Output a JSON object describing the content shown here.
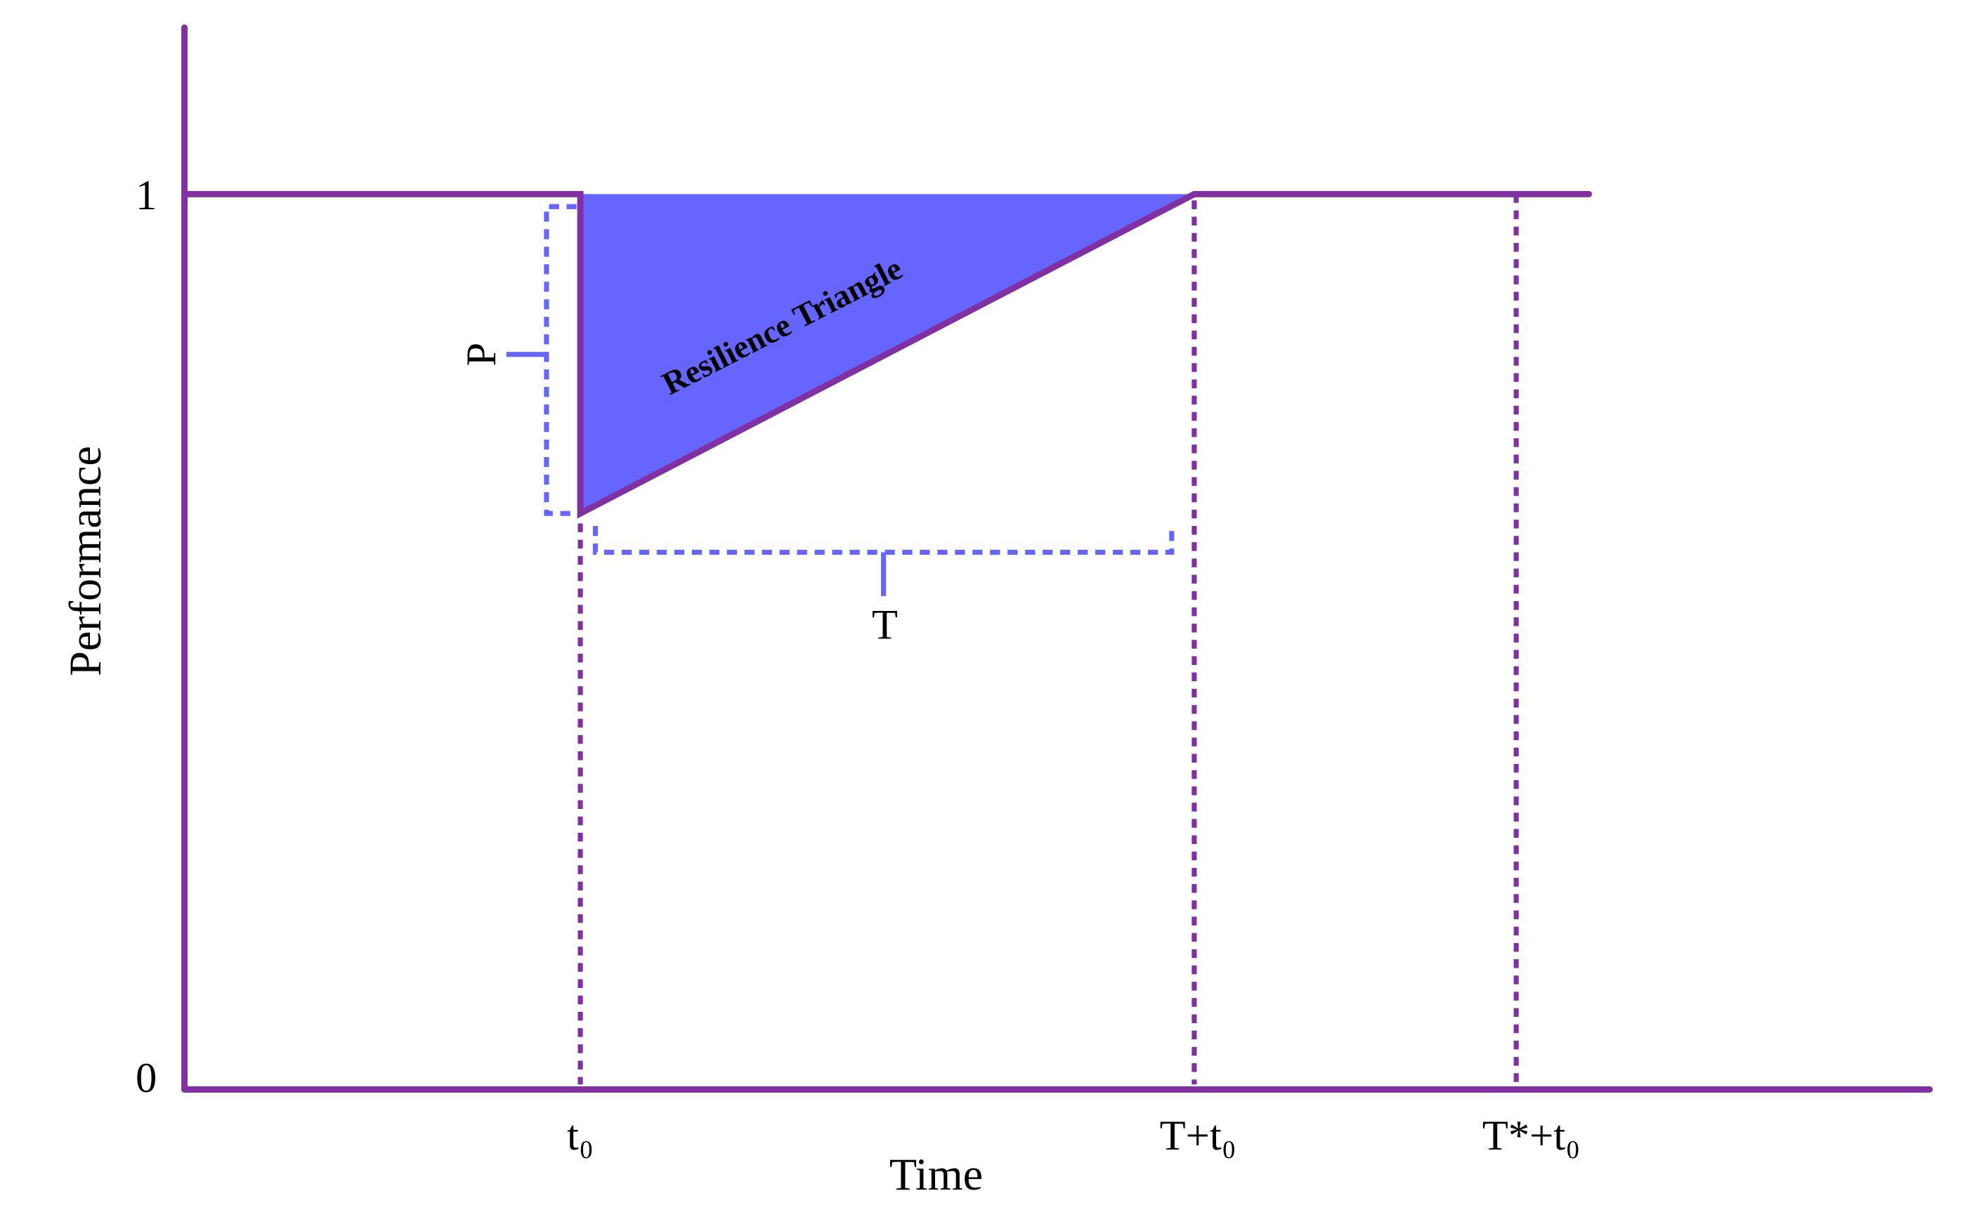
{
  "axes": {
    "y_label": "Performance",
    "x_label": "Time",
    "y_ticks": [
      "1",
      "0"
    ],
    "x_ticks": [
      "t₀",
      "T+t₀",
      "T*+t₀"
    ]
  },
  "annotations": {
    "area": "Resilience Triangle",
    "depth": "P",
    "duration": "T"
  }
}
